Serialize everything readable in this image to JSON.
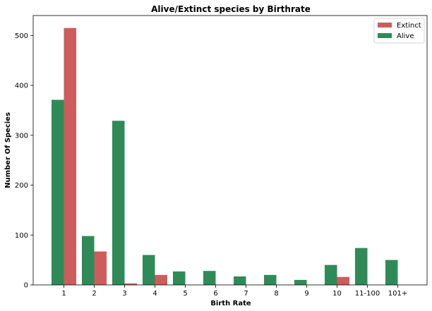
{
  "chart_data": {
    "type": "bar",
    "title": "Alive/Extinct species by Birthrate",
    "xlabel": "Birth Rate",
    "ylabel": "Number Of Species",
    "categories": [
      "1",
      "2",
      "3",
      "4",
      "5",
      "6",
      "7",
      "8",
      "9",
      "10",
      "11-100",
      "101+"
    ],
    "series": [
      {
        "name": "Alive",
        "color": "#2e8b57",
        "values": [
          371,
          98,
          329,
          60,
          27,
          28,
          17,
          20,
          10,
          40,
          74,
          50
        ]
      },
      {
        "name": "Extinct",
        "color": "#cd5c5c",
        "values": [
          515,
          67,
          3,
          20,
          0,
          0,
          0,
          0,
          0,
          16,
          0,
          0
        ]
      }
    ],
    "ylim": [
      0,
      540
    ],
    "yticks": [
      0,
      100,
      200,
      300,
      400,
      500
    ],
    "grid": false,
    "legend": {
      "position": "top-right",
      "entries": [
        "Extinct",
        "Alive"
      ]
    }
  }
}
